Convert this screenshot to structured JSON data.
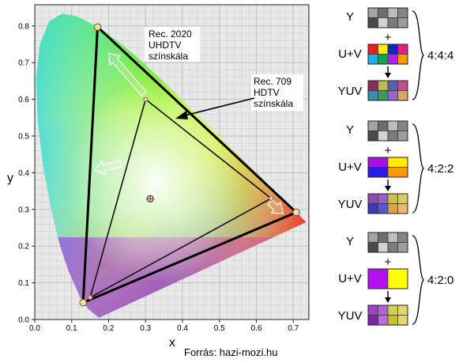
{
  "diagram": {
    "x_axis_label": "x",
    "y_axis_label": "y",
    "x_ticks": [
      "0.0",
      "0.1",
      "0.2",
      "0.3",
      "0.4",
      "0.5",
      "0.6",
      "0.7"
    ],
    "y_ticks": [
      "0.0",
      "0.1",
      "0.2",
      "0.3",
      "0.4",
      "0.5",
      "0.6",
      "0.7",
      "0.8"
    ],
    "gamut_2020_label": [
      "Rec. 2020",
      "UHDTV",
      "színskála"
    ],
    "gamut_709_label": [
      "Rec. 709",
      "HDTV",
      "színskála"
    ],
    "gamut_2020_primaries": {
      "red": [
        0.708,
        0.292
      ],
      "green": [
        0.17,
        0.797
      ],
      "blue": [
        0.131,
        0.046
      ]
    },
    "gamut_709_primaries": {
      "red": [
        0.64,
        0.33
      ],
      "green": [
        0.3,
        0.6
      ],
      "blue": [
        0.15,
        0.06
      ]
    },
    "white_point": [
      0.3127,
      0.329
    ],
    "colors": {
      "outline": "#000000",
      "vertex": "#f6e58d",
      "arrow_fill": "#ffffff"
    }
  },
  "subsampling": {
    "groups": [
      {
        "name": "4:4:4",
        "y_label": "Y",
        "plus": "+",
        "uv_label": "U+V",
        "yuv_label": "YUV",
        "y_cells": [
          "#a3a3a3",
          "#6e6e6e",
          "#bdbdbd",
          "#858585",
          "#4a4a4a",
          "#d2d2d2",
          "#7b7b7b",
          "#9c9c9c"
        ],
        "uv_cells": [
          "#ee1c24",
          "#ffee00",
          "#0d25c9",
          "#e41f7d",
          "#14b6e6",
          "#11a550",
          "#b21ef4",
          "#ff9900"
        ],
        "yuv_cells": [
          "#8b2e5e",
          "#c2b94a",
          "#5a5fb3",
          "#c0508a",
          "#3a8fa8",
          "#3c9a5c",
          "#9866c5",
          "#d9a36a"
        ]
      },
      {
        "name": "4:2:2",
        "y_label": "Y",
        "plus": "+",
        "uv_label": "U+V",
        "yuv_label": "YUV",
        "y_cells": [
          "#a3a3a3",
          "#6e6e6e",
          "#bdbdbd",
          "#858585",
          "#4a4a4a",
          "#d2d2d2",
          "#7b7b7b",
          "#9c9c9c"
        ],
        "uv_cells": [
          "#a512e4",
          "#ffee00",
          "#2a1ce8",
          "#ff9900"
        ],
        "yuv_cells": [
          "#8d4bb5",
          "#9960c4",
          "#cdc04a",
          "#d8cc62",
          "#3b3ab0",
          "#5757d6",
          "#d9a34e",
          "#e8b777"
        ]
      },
      {
        "name": "4:2:0",
        "y_label": "Y",
        "plus": "+",
        "uv_label": "U+V",
        "yuv_label": "YUV",
        "y_cells": [
          "#a3a3a3",
          "#6e6e6e",
          "#bdbdbd",
          "#858585",
          "#4a4a4a",
          "#d2d2d2",
          "#7b7b7b",
          "#9c9c9c"
        ],
        "uv_cells": [
          "#b312f0",
          "#ffff00"
        ],
        "yuv_cells": [
          "#9a45c4",
          "#b160de",
          "#d3cf4e",
          "#dfdb6b",
          "#7c27a5",
          "#b86ddd",
          "#c4bf35",
          "#e0db70"
        ]
      }
    ]
  },
  "source": "Forrás: hazi-mozi.hu"
}
